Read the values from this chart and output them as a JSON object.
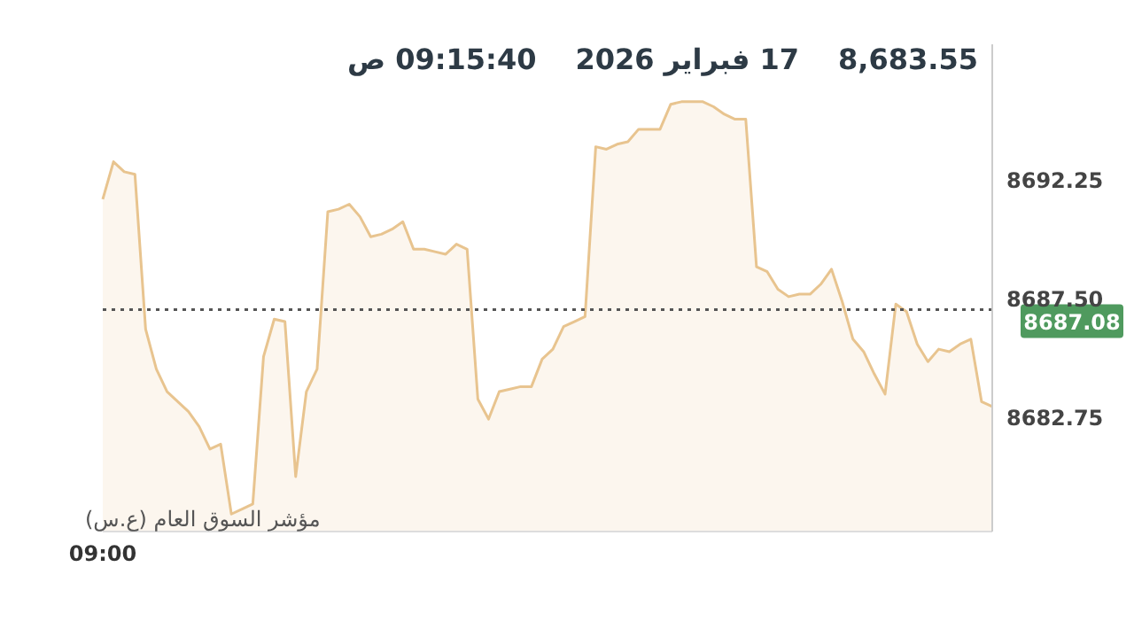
{
  "chart_data": {
    "type": "area",
    "title": "8,683.55",
    "subtitle": "17 فبراير 2026",
    "annotations": [
      "09:15:40 ص",
      "مؤشر السوق العام (ع.س)"
    ],
    "categories": [
      "09:00",
      null,
      null,
      null,
      null,
      null,
      null,
      null,
      null,
      null,
      null,
      null,
      null,
      null,
      null,
      null,
      null,
      null,
      null,
      null,
      null,
      null,
      null,
      null,
      null,
      null,
      null,
      null,
      null,
      null,
      null,
      null,
      null,
      null,
      null,
      null,
      null,
      null,
      null,
      null,
      null,
      null,
      null,
      null,
      null,
      null,
      null,
      null,
      null,
      null,
      null,
      null,
      null,
      null,
      null,
      null,
      null,
      null,
      null,
      null,
      null,
      null,
      null,
      null,
      null,
      null,
      null,
      null,
      null,
      null,
      null,
      null,
      null,
      null,
      null,
      null,
      null,
      null,
      null,
      null,
      null,
      null,
      null,
      null
    ],
    "series": [
      {
        "color": "#e8c48f",
        "values": [
          8691.5,
          8693.0,
          8692.6,
          8692.5,
          8686.3,
          8684.7,
          8683.8,
          8683.4,
          8683.0,
          8682.4,
          8681.5,
          8681.7,
          8678.9,
          8679.1,
          8679.3,
          8685.2,
          8686.7,
          8686.6,
          8680.4,
          8683.8,
          8684.7,
          8691.0,
          8691.1,
          8691.3,
          8690.8,
          8690.0,
          8690.1,
          8690.3,
          8690.6,
          8689.5,
          8689.5,
          8689.4,
          8689.3,
          8689.7,
          8689.5,
          8683.5,
          8682.7,
          8683.8,
          8683.9,
          8684.0,
          8684.0,
          8685.1,
          8685.5,
          8686.4,
          8686.6,
          8686.8,
          8693.6,
          8693.5,
          8693.7,
          8693.8,
          8694.3,
          8694.3,
          8694.3,
          8695.3,
          8695.4,
          8695.4,
          8695.4,
          8695.2,
          8694.9,
          8694.7,
          8694.7,
          8688.8,
          8688.6,
          8687.9,
          8687.6,
          8687.7,
          8687.7,
          8688.1,
          8688.7,
          8687.4,
          8685.9,
          8685.4,
          8684.5,
          8683.7,
          8687.3,
          8687.0,
          8685.7,
          8685.0,
          8685.5,
          8685.4,
          8685.7,
          8685.9,
          8683.4,
          8683.2
        ]
      }
    ],
    "ylim": [
      8678.2,
      8697.7
    ],
    "yticks": [
      8682.75,
      {
        "value": 8687.5,
        "label": "8687.50"
      },
      8692.25
    ],
    "ref_lines": [
      {
        "axis": "y",
        "value": 8687.08,
        "label": "8687.08",
        "color": "#555555",
        "line_style": "dotted"
      }
    ],
    "grid": false
  }
}
